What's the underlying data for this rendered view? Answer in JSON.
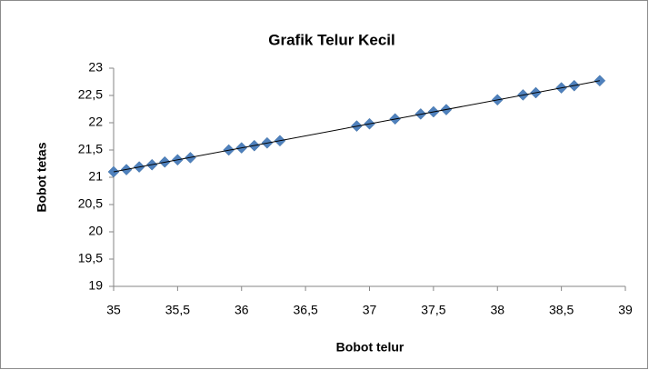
{
  "chart_data": {
    "type": "scatter",
    "title": "Grafik Telur Kecil",
    "x_label": "Bobot telur",
    "y_label": "Bobot tetas",
    "series": [
      {
        "color": "#4f81bd",
        "x": [
          35,
          35.1,
          35.2,
          35.3,
          35.4,
          35.5,
          35.6,
          35.9,
          36.0,
          36.1,
          36.2,
          36.3,
          36.9,
          37.0,
          37.2,
          37.4,
          37.5,
          37.6,
          38.0,
          38.2,
          38.3,
          38.5,
          38.6,
          38.8
        ],
        "values": [
          21.1,
          21.14,
          21.19,
          21.23,
          21.28,
          21.32,
          21.36,
          21.5,
          21.54,
          21.58,
          21.63,
          21.67,
          21.94,
          21.98,
          22.07,
          22.16,
          22.2,
          22.24,
          22.42,
          22.51,
          22.55,
          22.64,
          22.68,
          22.77
        ]
      }
    ],
    "trendline": {
      "color": "#000000",
      "x": [
        35,
        38.8
      ],
      "values": [
        21.1,
        22.77
      ]
    },
    "xlim": [
      35,
      39
    ],
    "xticks": [
      35,
      {
        "value": 35.5,
        "label": "35,5"
      },
      36,
      {
        "value": 36.5,
        "label": "36,5"
      },
      37,
      {
        "value": 37.5,
        "label": "37,5"
      },
      38,
      {
        "value": 38.5,
        "label": "38,5"
      },
      39
    ],
    "ylim": [
      19,
      23
    ],
    "yticks": [
      19,
      {
        "value": 19.5,
        "label": "19,5"
      },
      20,
      {
        "value": 20.5,
        "label": "20,5"
      },
      21,
      {
        "value": 21.5,
        "label": "21,5"
      },
      22,
      {
        "value": 22.5,
        "label": "22,5"
      },
      23
    ],
    "grid": false
  }
}
